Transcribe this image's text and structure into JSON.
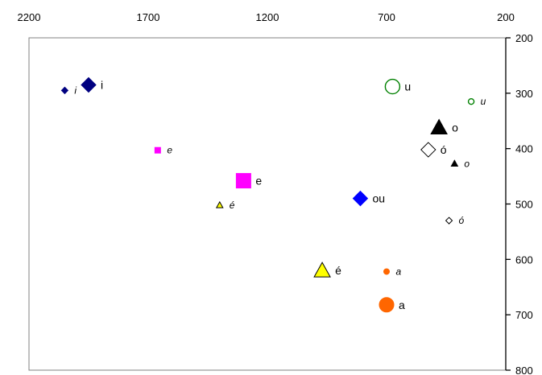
{
  "chart_data": {
    "type": "scatter",
    "title": "",
    "xlabel": "",
    "ylabel": "",
    "x_axis": {
      "position": "top",
      "reversed": true,
      "range": [
        2200,
        200
      ],
      "ticks": [
        2200,
        1700,
        1200,
        700,
        200
      ],
      "tick_labels": [
        "2200",
        "1700",
        "1200",
        "700",
        "200"
      ]
    },
    "y_axis": {
      "position": "right",
      "reversed": true,
      "range": [
        200,
        800
      ],
      "ticks": [
        200,
        300,
        400,
        500,
        600,
        700,
        800
      ],
      "tick_labels": [
        "200",
        "300",
        "400",
        "500",
        "600",
        "700",
        "800"
      ]
    },
    "grid": false,
    "legend": "none",
    "points": [
      {
        "label": "i",
        "italic": true,
        "x": 2050,
        "y": 295,
        "shape": "diamond",
        "color": "#000080",
        "fill": true,
        "size": "small"
      },
      {
        "label": "i",
        "italic": false,
        "x": 1950,
        "y": 285,
        "shape": "diamond",
        "color": "#000080",
        "fill": true,
        "size": "large"
      },
      {
        "label": "u",
        "italic": false,
        "x": 675,
        "y": 288,
        "shape": "circle",
        "color": "#008000",
        "fill": false,
        "size": "large"
      },
      {
        "label": "u",
        "italic": true,
        "x": 345,
        "y": 315,
        "shape": "circle",
        "color": "#008000",
        "fill": false,
        "size": "small"
      },
      {
        "label": "o",
        "italic": false,
        "x": 480,
        "y": 362,
        "shape": "triangle",
        "color": "#000000",
        "fill": true,
        "size": "large"
      },
      {
        "label": "ó",
        "italic": false,
        "x": 525,
        "y": 402,
        "shape": "diamond",
        "color": "#000000",
        "fill": false,
        "size": "large"
      },
      {
        "label": "o",
        "italic": true,
        "x": 415,
        "y": 427,
        "shape": "triangle",
        "color": "#000000",
        "fill": true,
        "size": "small"
      },
      {
        "label": "e",
        "italic": true,
        "x": 1660,
        "y": 403,
        "shape": "square",
        "color": "#FF00FF",
        "fill": true,
        "size": "small"
      },
      {
        "label": "e",
        "italic": false,
        "x": 1300,
        "y": 458,
        "shape": "square",
        "color": "#FF00FF",
        "fill": true,
        "size": "large"
      },
      {
        "label": "é",
        "italic": true,
        "x": 1400,
        "y": 502,
        "shape": "triangle",
        "color": "#FFFF00",
        "fill": true,
        "size": "small"
      },
      {
        "label": "ou",
        "italic": false,
        "x": 810,
        "y": 490,
        "shape": "diamond",
        "color": "#0000FF",
        "fill": true,
        "size": "large"
      },
      {
        "label": "ó",
        "italic": true,
        "x": 438,
        "y": 530,
        "shape": "diamond",
        "color": "#000000",
        "fill": false,
        "size": "small"
      },
      {
        "label": "é",
        "italic": false,
        "x": 970,
        "y": 620,
        "shape": "triangle",
        "color": "#FFFF00",
        "fill": true,
        "size": "large"
      },
      {
        "label": "a",
        "italic": true,
        "x": 700,
        "y": 622,
        "shape": "circle",
        "color": "#FF6600",
        "fill": true,
        "size": "small"
      },
      {
        "label": "a",
        "italic": false,
        "x": 700,
        "y": 682,
        "shape": "circle",
        "color": "#FF6600",
        "fill": true,
        "size": "large"
      }
    ]
  }
}
